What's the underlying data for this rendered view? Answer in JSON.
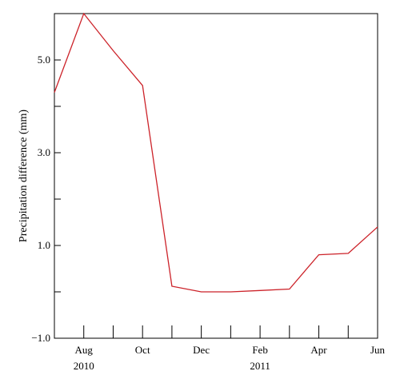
{
  "chart_data": {
    "type": "line",
    "ylabel": "Precipitation difference (mm)",
    "xlabel": "",
    "ylim": [
      -1.0,
      6.0
    ],
    "yticks": [
      -1.0,
      1.0,
      3.0,
      5.0
    ],
    "ytick_labels": [
      "−1.0",
      "1.0",
      "3.0",
      "5.0"
    ],
    "x": [
      "Jul 2010",
      "Aug 2010",
      "Sep 2010",
      "Oct 2010",
      "Nov 2010",
      "Dec 2010",
      "Jan 2011",
      "Feb 2011",
      "Mar 2011",
      "Apr 2011",
      "May 2011",
      "Jun 2011"
    ],
    "xtick_labels": [
      "Aug",
      "Oct",
      "Dec",
      "Feb",
      "Apr",
      "Jun"
    ],
    "xtick_label_months": [
      "Aug 2010",
      "Oct 2010",
      "Dec 2010",
      "Feb 2011",
      "Apr 2011",
      "Jun 2011"
    ],
    "year_labels": [
      {
        "text": "2010",
        "month": "Aug 2010"
      },
      {
        "text": "2011",
        "month": "Feb 2011"
      }
    ],
    "series": [
      {
        "color": "#cc2229",
        "values": [
          4.3,
          6.0,
          5.2,
          4.45,
          0.12,
          0.0,
          0.0,
          0.03,
          0.06,
          0.8,
          0.83,
          1.4
        ]
      }
    ],
    "grid": false
  }
}
